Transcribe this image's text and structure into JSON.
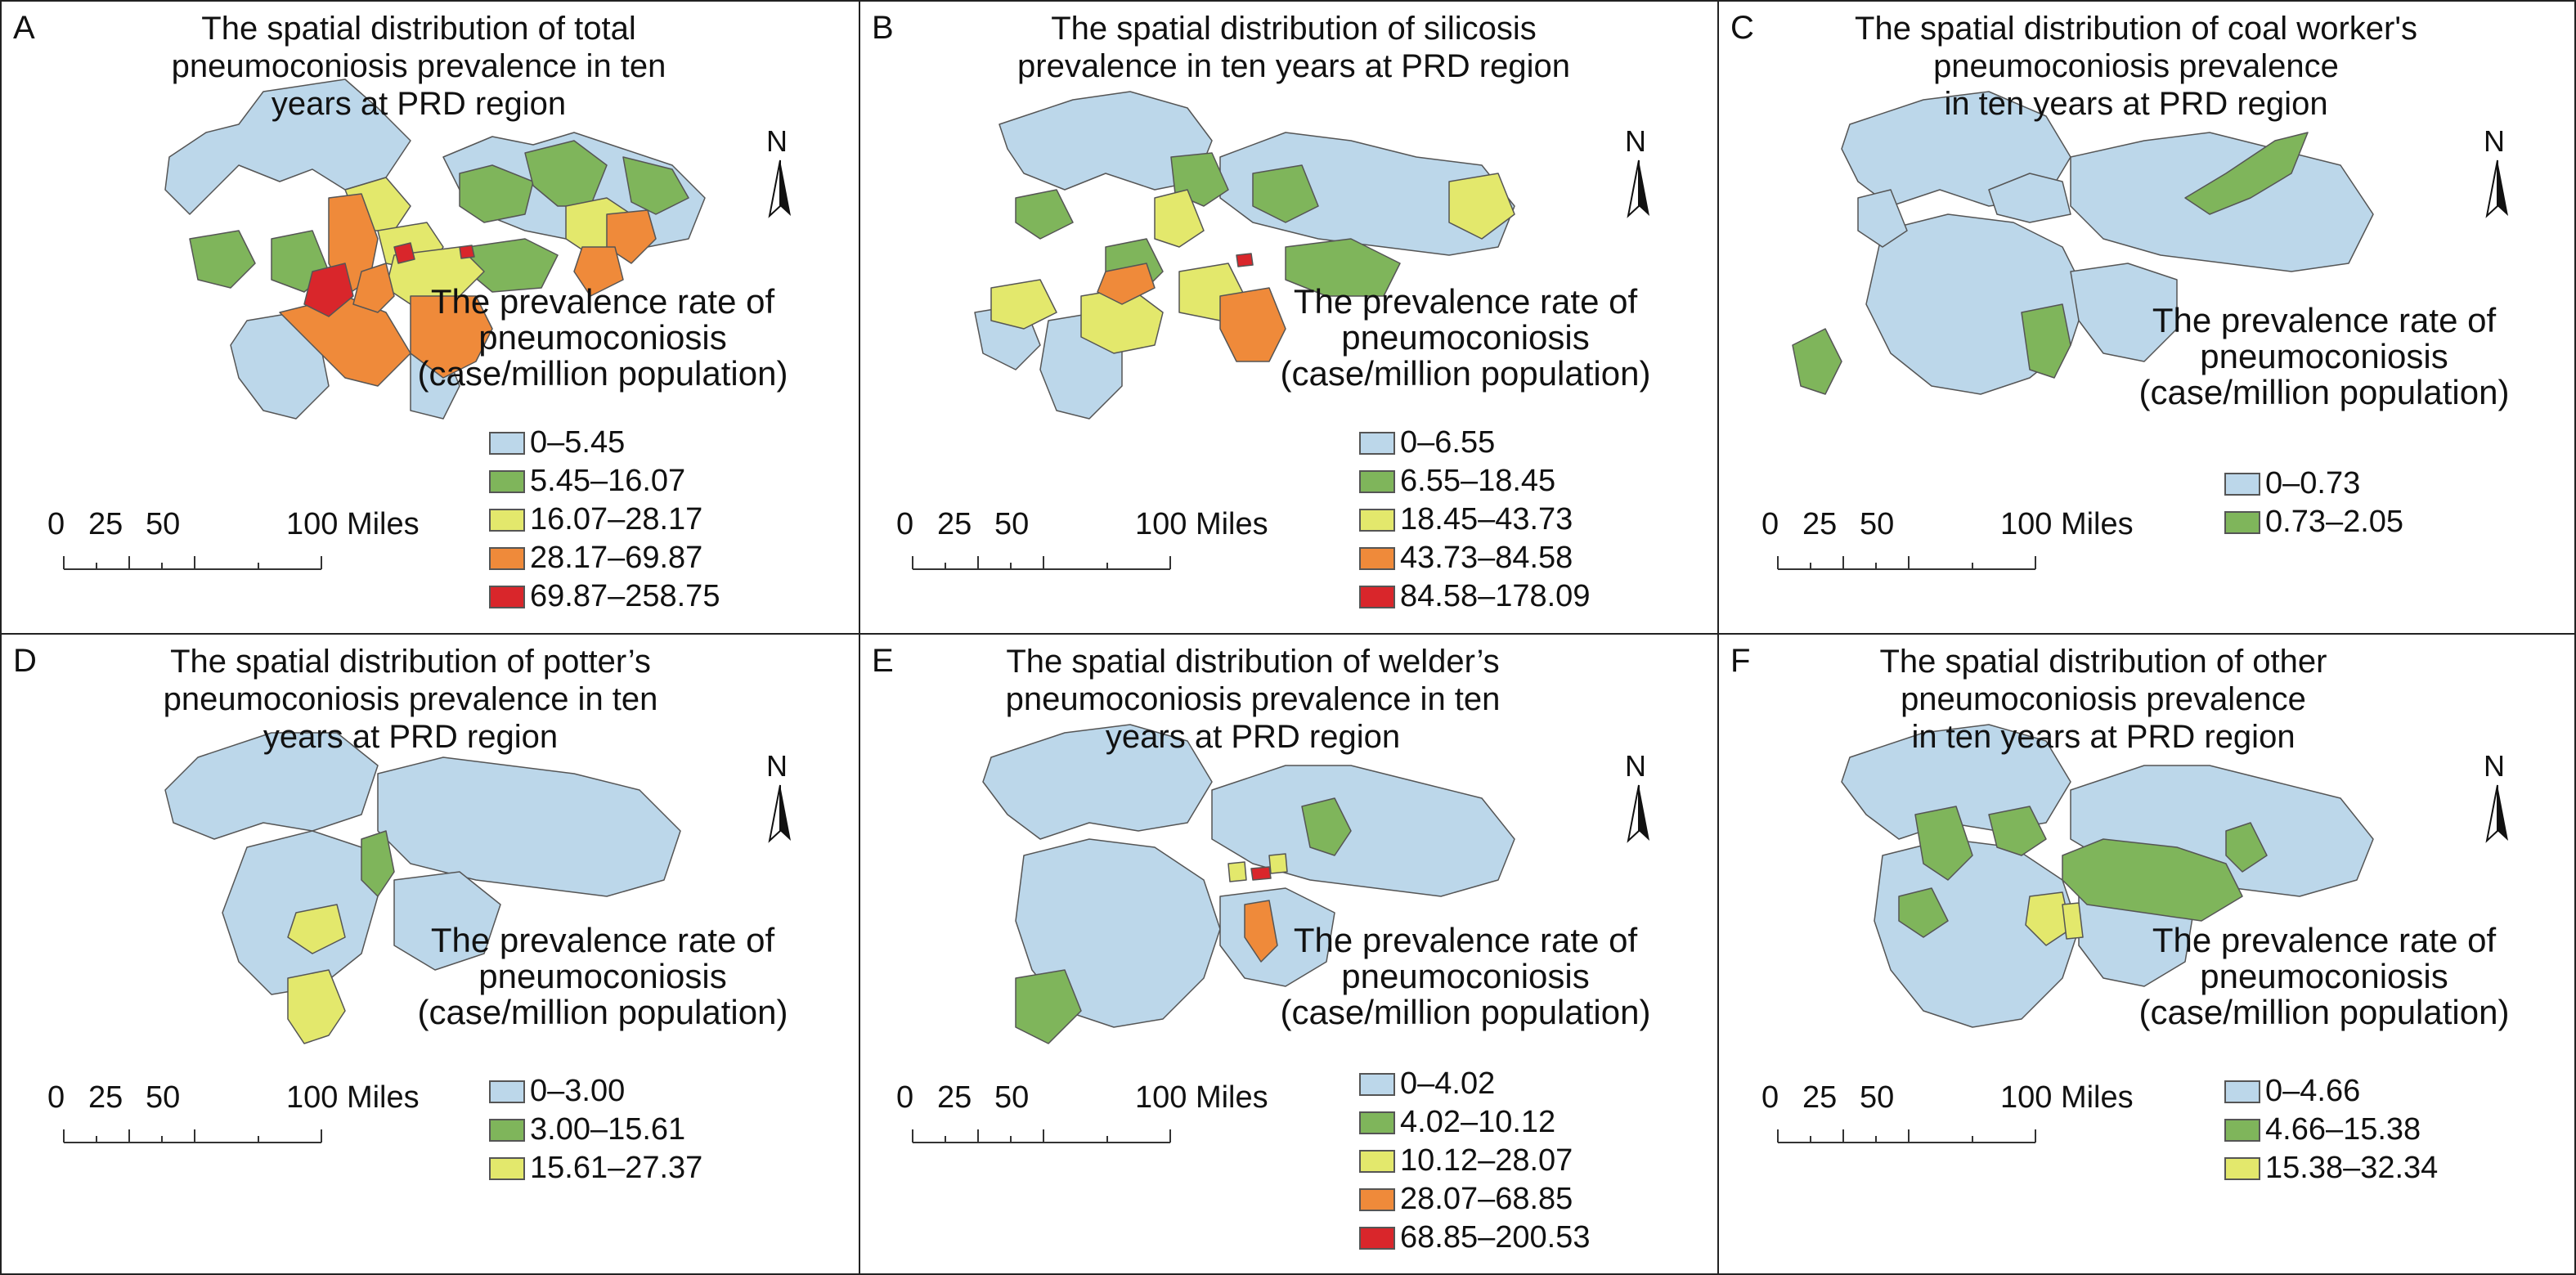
{
  "figure": {
    "panels": [
      {
        "letter": "A",
        "title": "The spatial distribution of total\npneumoconiosis prevalence in ten\nyears at PRD region",
        "north": "N",
        "rate_title": "The prevalence rate of\npneumoconiosis\n(case/million population)",
        "legend": [
          {
            "label": "0–5.45",
            "color": "#bcd7ea"
          },
          {
            "label": "5.45–16.07",
            "color": "#7fb55b"
          },
          {
            "label": "16.07–28.17",
            "color": "#e3e86c"
          },
          {
            "label": "28.17–69.87",
            "color": "#ef8a3a"
          },
          {
            "label": "69.87–258.75",
            "color": "#d9262b"
          }
        ],
        "scale": {
          "ticks": [
            "0",
            "25",
            "50",
            "100 Miles"
          ]
        }
      },
      {
        "letter": "B",
        "title": "The spatial distribution of silicosis\nprevalence in ten years at PRD region",
        "north": "N",
        "rate_title": "The prevalence rate of\npneumoconiosis\n(case/million population)",
        "legend": [
          {
            "label": "0–6.55",
            "color": "#bcd7ea"
          },
          {
            "label": "6.55–18.45",
            "color": "#7fb55b"
          },
          {
            "label": "18.45–43.73",
            "color": "#e3e86c"
          },
          {
            "label": "43.73–84.58",
            "color": "#ef8a3a"
          },
          {
            "label": "84.58–178.09",
            "color": "#d9262b"
          }
        ],
        "scale": {
          "ticks": [
            "0",
            "25",
            "50",
            "100 Miles"
          ]
        }
      },
      {
        "letter": "C",
        "title": "The spatial distribution of coal worker's\npneumoconiosis prevalence\nin ten years at PRD region",
        "north": "N",
        "rate_title": "The prevalence rate of\npneumoconiosis\n(case/million population)",
        "legend": [
          {
            "label": "0–0.73",
            "color": "#bcd7ea"
          },
          {
            "label": "0.73–2.05",
            "color": "#7fb55b"
          }
        ],
        "scale": {
          "ticks": [
            "0",
            "25",
            "50",
            "100 Miles"
          ]
        }
      },
      {
        "letter": "D",
        "title": "The spatial distribution of potter’s\npneumoconiosis prevalence in ten\nyears at PRD region",
        "north": "N",
        "rate_title": "The prevalence rate of\npneumoconiosis\n(case/million population)",
        "legend": [
          {
            "label": "0–3.00",
            "color": "#bcd7ea"
          },
          {
            "label": "3.00–15.61",
            "color": "#7fb55b"
          },
          {
            "label": "15.61–27.37",
            "color": "#e3e86c"
          }
        ],
        "scale": {
          "ticks": [
            "0",
            "25",
            "50",
            "100 Miles"
          ]
        }
      },
      {
        "letter": "E",
        "title": "The spatial distribution of welder’s\npneumoconiosis prevalence in ten\nyears at PRD region",
        "north": "N",
        "rate_title": "The prevalence rate of\npneumoconiosis\n(case/million population)",
        "legend": [
          {
            "label": "0–4.02",
            "color": "#bcd7ea"
          },
          {
            "label": "4.02–10.12",
            "color": "#7fb55b"
          },
          {
            "label": "10.12–28.07",
            "color": "#e3e86c"
          },
          {
            "label": "28.07–68.85",
            "color": "#ef8a3a"
          },
          {
            "label": "68.85–200.53",
            "color": "#d9262b"
          }
        ],
        "scale": {
          "ticks": [
            "0",
            "25",
            "50",
            "100 Miles"
          ]
        }
      },
      {
        "letter": "F",
        "title": "The spatial distribution of other\npneumoconiosis prevalence\nin ten years at PRD region",
        "north": "N",
        "rate_title": "The prevalence rate of\npneumoconiosis\n(case/million population)",
        "legend": [
          {
            "label": "0–4.66",
            "color": "#bcd7ea"
          },
          {
            "label": "4.66–15.38",
            "color": "#7fb55b"
          },
          {
            "label": "15.38–32.34",
            "color": "#e3e86c"
          }
        ],
        "scale": {
          "ticks": [
            "0",
            "25",
            "50",
            "100 Miles"
          ]
        }
      }
    ]
  }
}
